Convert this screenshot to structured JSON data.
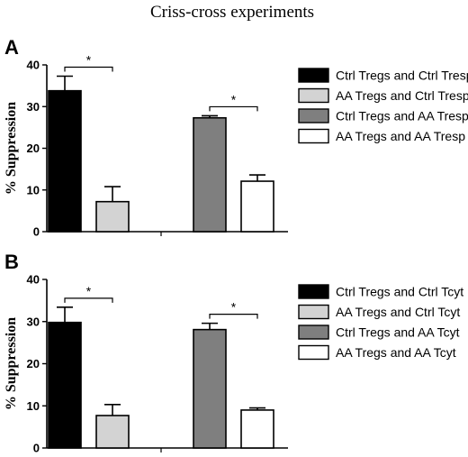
{
  "title": "Criss-cross experiments",
  "chart_data": [
    {
      "type": "bar",
      "panel": "A",
      "ylabel": "% Suppression",
      "ylim": [
        0,
        40
      ],
      "yticks": [
        0,
        10,
        20,
        30,
        40
      ],
      "series": [
        {
          "name": "Ctrl Tregs and Ctrl Tresp",
          "value": 33.8,
          "error": 3.5,
          "color": "#000000"
        },
        {
          "name": "AA Tregs and Ctrl Tresp",
          "value": 7.2,
          "error": 3.6,
          "color": "#d3d3d3"
        },
        {
          "name": "Ctrl Tregs and AA Tresp",
          "value": 27.3,
          "error": 0.5,
          "color": "#7f7f7f"
        },
        {
          "name": "AA Tregs and AA Tresp",
          "value": 12.1,
          "error": 1.5,
          "color": "#ffffff"
        }
      ],
      "significance": [
        {
          "between": [
            0,
            1
          ],
          "label": "*"
        },
        {
          "between": [
            2,
            3
          ],
          "label": "*"
        }
      ],
      "legend_position": "right"
    },
    {
      "type": "bar",
      "panel": "B",
      "ylabel": "% Suppression",
      "ylim": [
        0,
        40
      ],
      "yticks": [
        0,
        10,
        20,
        30,
        40
      ],
      "series": [
        {
          "name": "Ctrl Tregs and Ctrl Tcyt",
          "value": 29.8,
          "error": 3.6,
          "color": "#000000"
        },
        {
          "name": "AA Tregs and Ctrl Tcyt",
          "value": 7.7,
          "error": 2.6,
          "color": "#d3d3d3"
        },
        {
          "name": "Ctrl Tregs and AA Tcyt",
          "value": 28.1,
          "error": 1.5,
          "color": "#7f7f7f"
        },
        {
          "name": "AA Tregs and AA Tcyt",
          "value": 9.0,
          "error": 0.5,
          "color": "#ffffff"
        }
      ],
      "significance": [
        {
          "between": [
            0,
            1
          ],
          "label": "*"
        },
        {
          "between": [
            2,
            3
          ],
          "label": "*"
        }
      ],
      "legend_position": "right"
    }
  ]
}
